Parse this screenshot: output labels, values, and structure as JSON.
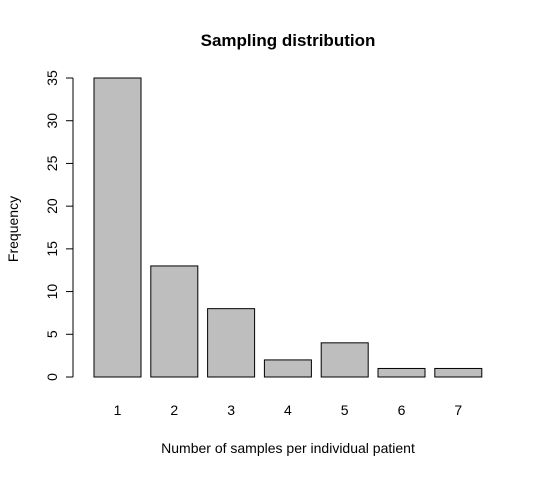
{
  "chart_data": {
    "type": "bar",
    "title": "Sampling distribution",
    "xlabel": "Number of samples per individual patient",
    "ylabel": "Frequency",
    "categories": [
      "1",
      "2",
      "3",
      "4",
      "5",
      "6",
      "7"
    ],
    "values": [
      35,
      13,
      8,
      2,
      4,
      1,
      1
    ],
    "ylim": [
      0,
      35
    ],
    "yticks": [
      "0",
      "5",
      "10",
      "15",
      "20",
      "25",
      "30",
      "35"
    ],
    "bar_color": "#bebebe",
    "grid": false,
    "legend": "none"
  }
}
